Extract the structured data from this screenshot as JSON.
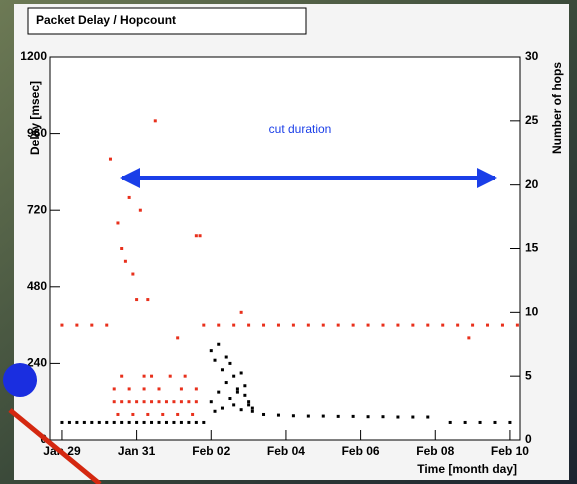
{
  "chart_data": {
    "type": "scatter",
    "title": "Packet Delay / Hopcount",
    "y_label": "Delay [msec]",
    "y2_label": "Number of hops",
    "x_label": "Time [month day]",
    "annotation": "cut duration",
    "xlim": [
      28.68,
      41.27
    ],
    "xticks": [
      {
        "value": 29,
        "label": "Jan 29"
      },
      {
        "value": 31,
        "label": "Jan 31"
      },
      {
        "value": 33,
        "label": "Feb 02"
      },
      {
        "value": 35,
        "label": "Feb 04"
      },
      {
        "value": 37,
        "label": "Feb 06"
      },
      {
        "value": 39,
        "label": "Feb 08"
      },
      {
        "value": 41,
        "label": "Feb 10"
      }
    ],
    "ylim": [
      0,
      1200
    ],
    "yticks": [
      0,
      240,
      480,
      720,
      960,
      1200
    ],
    "y2lim": [
      0,
      30
    ],
    "y2ticks": [
      0,
      5,
      10,
      15,
      20,
      25,
      30
    ],
    "series": [
      {
        "color": "#000000",
        "axis": "y",
        "x": [
          29.0,
          29.2,
          29.4,
          29.6,
          29.8,
          30.0,
          30.2,
          30.4,
          30.6,
          30.8,
          31.0,
          31.2,
          31.4,
          31.6,
          31.8,
          32.0,
          32.2,
          32.4,
          32.6,
          32.8,
          33.0,
          33.0,
          33.1,
          33.1,
          33.2,
          33.2,
          33.3,
          33.3,
          33.4,
          33.4,
          33.5,
          33.5,
          33.6,
          33.6,
          33.7,
          33.7,
          33.8,
          33.8,
          33.9,
          33.9,
          34.0,
          34.0,
          34.1,
          34.1,
          34.4,
          34.8,
          35.2,
          35.6,
          36.0,
          36.4,
          36.8,
          37.2,
          37.6,
          38.0,
          38.4,
          38.8,
          39.4,
          39.8,
          40.2,
          40.6,
          41.0
        ],
        "values": [
          55,
          55,
          55,
          55,
          55,
          55,
          55,
          55,
          55,
          55,
          55,
          55,
          55,
          55,
          55,
          55,
          55,
          55,
          55,
          55,
          120,
          280,
          90,
          250,
          150,
          300,
          100,
          220,
          180,
          260,
          130,
          240,
          110,
          200,
          160,
          150,
          95,
          210,
          140,
          170,
          120,
          110,
          90,
          100,
          80,
          78,
          76,
          75,
          75,
          74,
          74,
          73,
          73,
          72,
          72,
          72,
          55,
          55,
          55,
          55,
          55
        ]
      },
      {
        "color": "#e8301c",
        "axis": "y2",
        "x": [
          29.0,
          29.4,
          29.8,
          30.2,
          30.3,
          30.5,
          30.6,
          30.7,
          30.9,
          31.0,
          30.8,
          31.5,
          32.6,
          32.7,
          31.1,
          31.2,
          31.4,
          30.4,
          30.6,
          30.8,
          31.0,
          31.2,
          31.4,
          31.6,
          31.8,
          32.0,
          32.2,
          32.4,
          32.6,
          30.4,
          30.8,
          31.2,
          31.6,
          32.2,
          32.6,
          30.5,
          30.9,
          31.3,
          31.7,
          32.1,
          32.5,
          30.6,
          31.9,
          32.3,
          31.3,
          32.1,
          32.8,
          33.2,
          33.6,
          34.0,
          34.4,
          34.8,
          35.2,
          35.6,
          36.0,
          36.4,
          36.8,
          37.2,
          37.6,
          38.0,
          38.4,
          38.8,
          39.2,
          39.6,
          40.0,
          40.4,
          40.8,
          41.2,
          33.8,
          39.9
        ],
        "values": [
          9,
          9,
          9,
          9,
          22,
          17,
          15,
          14,
          13,
          11,
          19,
          25,
          16,
          16,
          18,
          5,
          5,
          3,
          3,
          3,
          3,
          3,
          3,
          3,
          3,
          3,
          3,
          3,
          3,
          4,
          4,
          4,
          4,
          4,
          4,
          2,
          2,
          2,
          2,
          2,
          2,
          5,
          5,
          5,
          11,
          8,
          9,
          9,
          9,
          9,
          9,
          9,
          9,
          9,
          9,
          9,
          9,
          9,
          9,
          9,
          9,
          9,
          9,
          9,
          9,
          9,
          9,
          9,
          10,
          8
        ]
      }
    ]
  }
}
